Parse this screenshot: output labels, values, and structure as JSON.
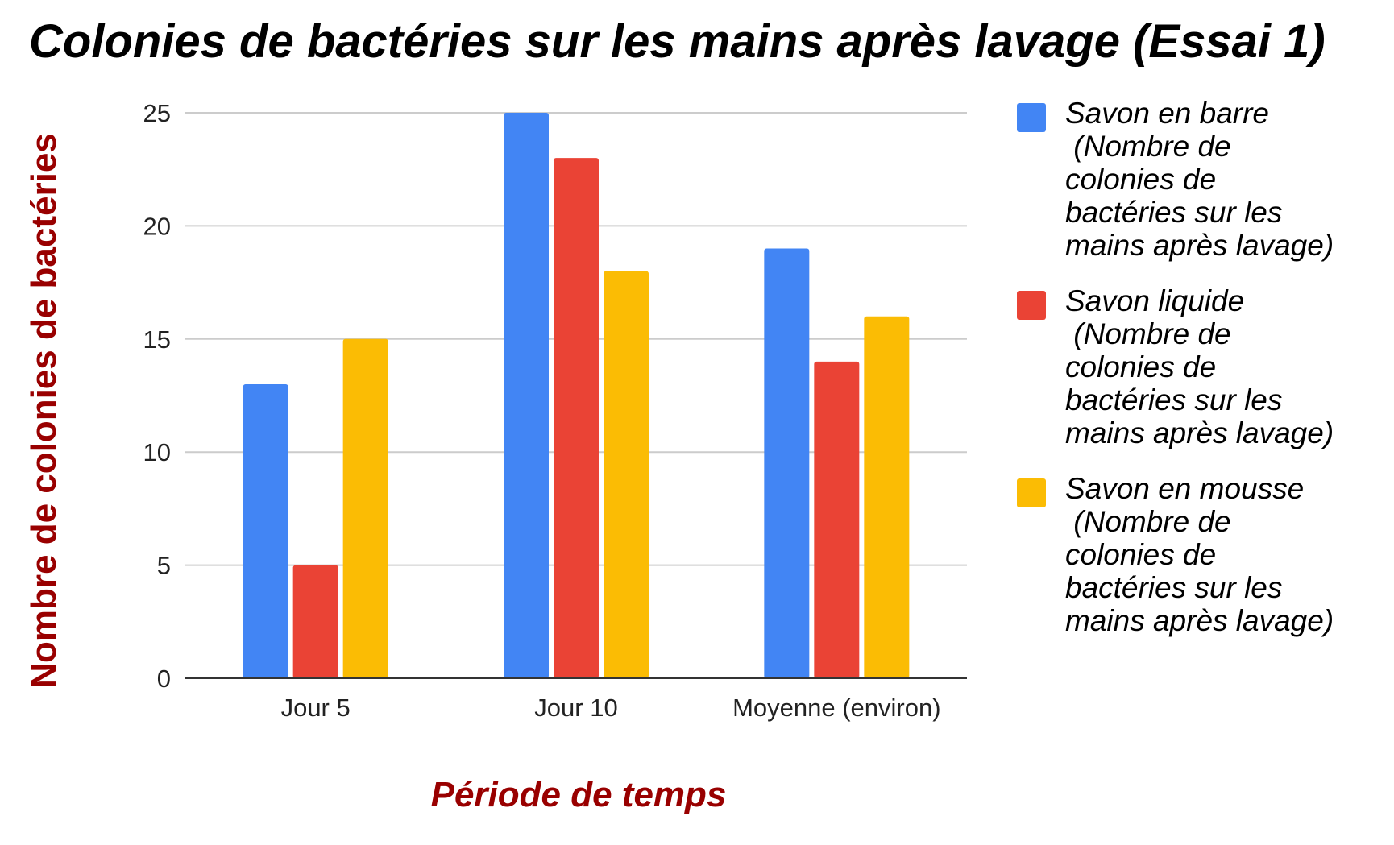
{
  "chart_data": {
    "type": "bar",
    "title": "Colonies de bactéries sur les mains après lavage (Essai 1)",
    "xlabel": "Période de temps",
    "ylabel": "Nombre de colonies de bactéries",
    "categories": [
      "Jour 5",
      "Jour 10",
      "Moyenne (environ)"
    ],
    "series": [
      {
        "name": "Savon en barre\n (Nombre de\ncolonies de\nbactéries sur les\nmains après lavage)",
        "color": "#4285F4",
        "values": [
          13,
          25,
          19
        ]
      },
      {
        "name": "Savon liquide\n (Nombre de\ncolonies de\nbactéries sur les\nmains après lavage)",
        "color": "#EA4335",
        "values": [
          5,
          23,
          14
        ]
      },
      {
        "name": "Savon en mousse\n (Nombre de\ncolonies de\nbactéries sur les\nmains après lavage)",
        "color": "#FBBC04",
        "values": [
          15,
          18,
          16
        ]
      }
    ],
    "ylim": [
      0,
      25
    ],
    "yticks": [
      0,
      5,
      10,
      15,
      20,
      25
    ],
    "grid": true,
    "legend_position": "right"
  }
}
